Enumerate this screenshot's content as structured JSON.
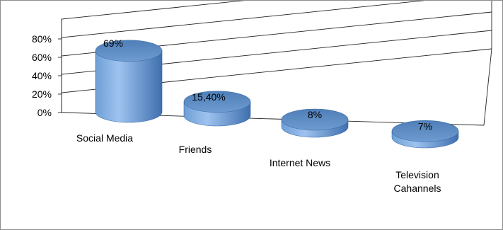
{
  "chart_data": {
    "type": "bar",
    "categories": [
      "Social Media",
      "Friends",
      "Internet News",
      [
        "Television",
        "Cahannels"
      ]
    ],
    "values": [
      69,
      15.4,
      8,
      7
    ],
    "data_labels": [
      "69%",
      "15,40%",
      "8%",
      "7%"
    ],
    "yticks": [
      "0%",
      "20%",
      "40%",
      "60%",
      "80%"
    ],
    "ylim": [
      0,
      80
    ],
    "grid": true,
    "bar_color": "#4f81bd"
  }
}
